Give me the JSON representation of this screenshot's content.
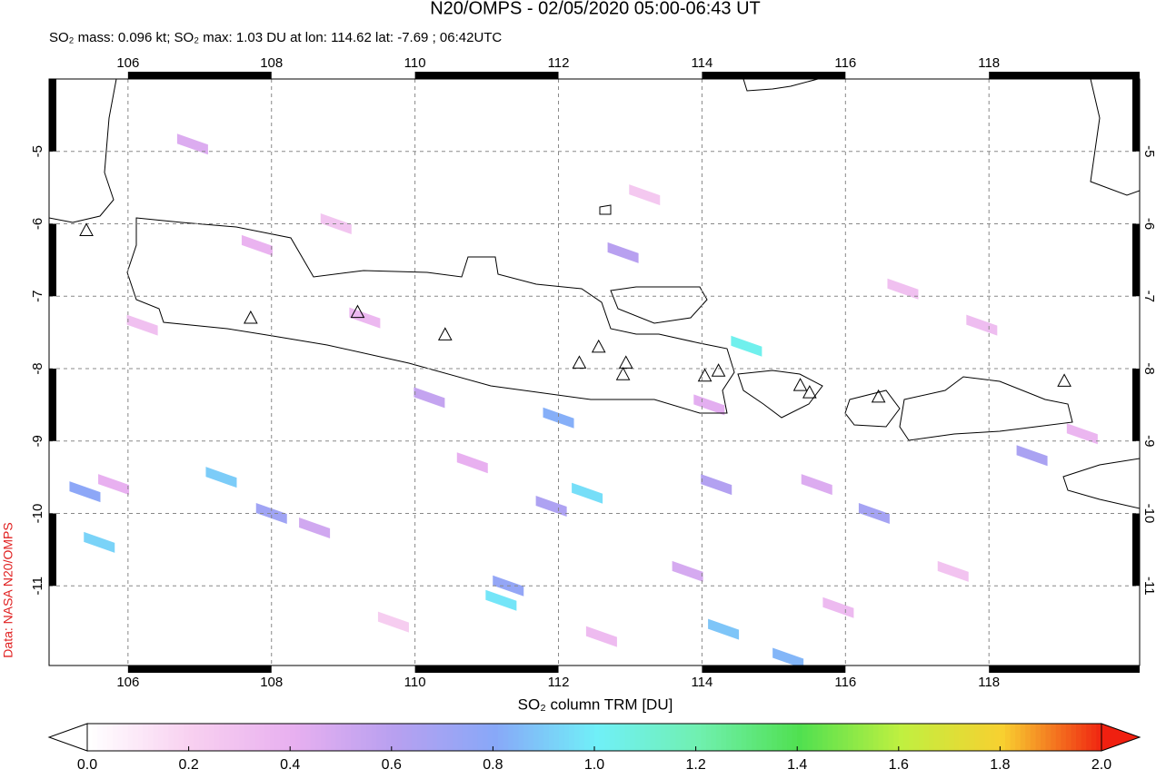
{
  "chart_data": {
    "type": "map",
    "title": "N20/OMPS - 02/05/2020 05:00-06:43 UT",
    "subtitle": "SO₂ mass: 0.096 kt; SO₂ max: 1.03 DU at lon: 114.62 lat: -7.69 ; 06:42UTC",
    "side_label": "Data: NASA N20/OMPS",
    "xlim": [
      104.9,
      120.1
    ],
    "ylim": [
      -12.1,
      -4
    ],
    "xticks": [
      106,
      108,
      110,
      112,
      114,
      116,
      118
    ],
    "yticks": [
      -5,
      -6,
      -7,
      -8,
      -9,
      -10,
      -11
    ],
    "grid": true,
    "pixels": {
      "lon": [
        114.62,
        112.0,
        112.4,
        111.3,
        111.2,
        108.0,
        105.4,
        105.6,
        107.3,
        114.2,
        114.3,
        116.4,
        118.6,
        111.9,
        115.2,
        110.2,
        115.6,
        108.6,
        113.8,
        109.3,
        114.1,
        106.2,
        107.8,
        110.8,
        112.6,
        117.5,
        113.2,
        116.8,
        119.3,
        109.7,
        106.9,
        115.9,
        108.9,
        112.9,
        117.9,
        105.8
      ],
      "lat": [
        -7.69,
        -8.68,
        -9.72,
        -11.0,
        -11.2,
        -10.0,
        -9.7,
        -10.4,
        -9.5,
        -9.6,
        -11.6,
        -10.0,
        -9.2,
        -9.9,
        -12.0,
        -8.4,
        -9.6,
        -10.2,
        -10.8,
        -7.3,
        -8.5,
        -7.4,
        -6.3,
        -9.3,
        -11.7,
        -10.8,
        -5.6,
        -6.9,
        -8.9,
        -11.5,
        -4.9,
        -11.3,
        -6.0,
        -6.4,
        -7.4,
        -9.6
      ],
      "values": [
        1.03,
        0.82,
        0.95,
        0.75,
        0.97,
        0.7,
        0.78,
        0.92,
        0.9,
        0.62,
        0.88,
        0.68,
        0.66,
        0.64,
        0.84,
        0.55,
        0.45,
        0.5,
        0.48,
        0.35,
        0.42,
        0.3,
        0.38,
        0.4,
        0.33,
        0.28,
        0.25,
        0.3,
        0.36,
        0.22,
        0.45,
        0.34,
        0.27,
        0.6,
        0.32,
        0.4
      ]
    },
    "volcanoes": {
      "lon": [
        105.42,
        107.71,
        109.2,
        110.42,
        112.29,
        112.56,
        112.94,
        112.9,
        114.04,
        114.23,
        115.37,
        115.5,
        116.46,
        119.05
      ],
      "lat": [
        -6.1,
        -7.31,
        -7.23,
        -7.54,
        -7.93,
        -7.71,
        -7.93,
        -8.09,
        -8.11,
        -8.04,
        -8.24,
        -8.34,
        -8.4,
        -8.18
      ]
    },
    "colorbar": {
      "label": "SO₂ column TRM [DU]",
      "lim": [
        0,
        2
      ],
      "ticks": [
        {
          "value": 0,
          "label": "0.0"
        },
        {
          "value": 0.2,
          "label": "0.2"
        },
        {
          "value": 0.4,
          "label": "0.4"
        },
        {
          "value": 0.6,
          "label": "0.6"
        },
        {
          "value": 0.8,
          "label": "0.8"
        },
        {
          "value": 1,
          "label": "1.0"
        },
        {
          "value": 1.2,
          "label": "1.2"
        },
        {
          "value": 1.4,
          "label": "1.4"
        },
        {
          "value": 1.6,
          "label": "1.6"
        },
        {
          "value": 1.8,
          "label": "1.8"
        },
        {
          "value": 2,
          "label": "2.0"
        }
      ],
      "colors": [
        "#ffffff",
        "#f8d0f0",
        "#e8b0f0",
        "#b8a0f0",
        "#88a8f8",
        "#70f0f8",
        "#70f0b0",
        "#50e050",
        "#c0f040",
        "#f8d030",
        "#f02010"
      ]
    }
  }
}
